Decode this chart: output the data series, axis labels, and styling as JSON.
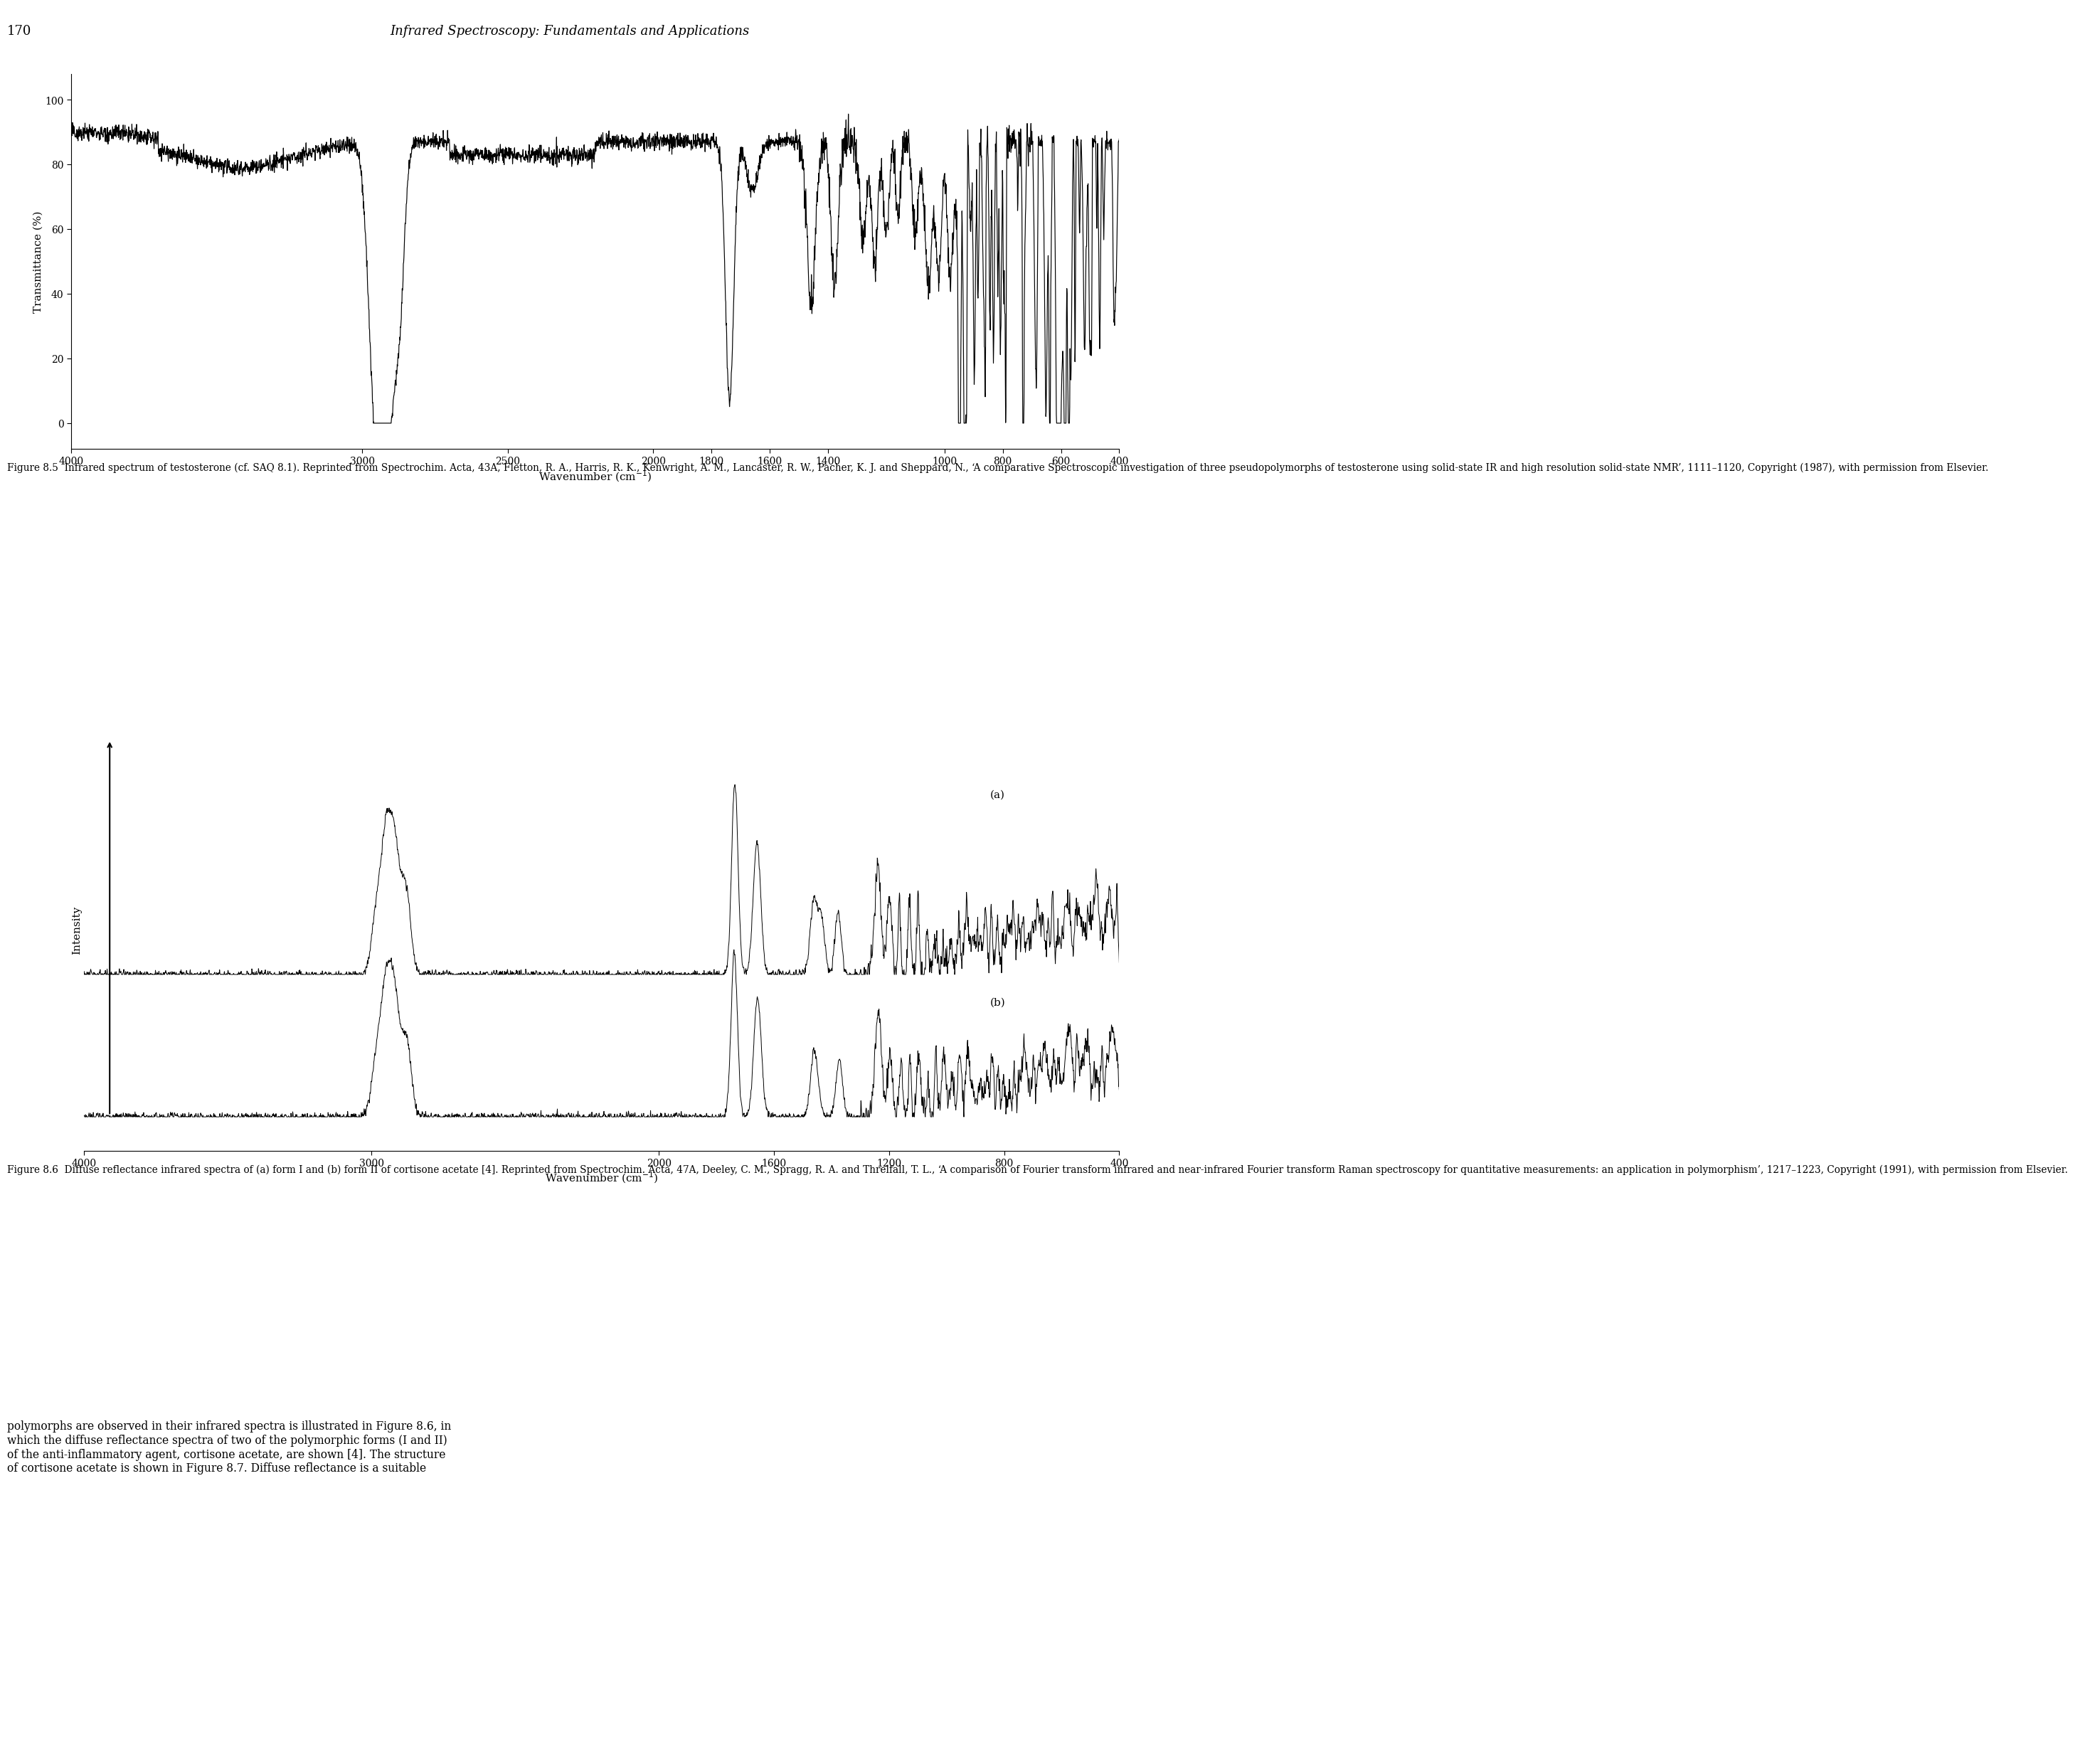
{
  "page_title": "Infrared Spectroscopy: Fundamentals and Applications",
  "page_number": "170",
  "background_color": "#ffffff",
  "fig85_caption": "Figure 8.5  Infrared spectrum of testosterone (cf. SAQ 8.1). Reprinted from Spectrochim. Acta, 43A, Fletton, R. A., Harris, R. K., Kenwright, A. M., Lancaster, R. W., Pacher, K. J. and Sheppard, N., ‘A comparative Spectroscopic investigation of three pseudopolymorphs of testosterone using solid-state IR and high resolution solid-state NMR’, 1111–1120, Copyright (1987), with permission from Elsevier.",
  "fig86_caption": "Figure 8.6  Diffuse reflectance infrared spectra of (a) form I and (b) form II of cortisone acetate [4]. Reprinted from Spectrochim. Acta, 47A, Deeley, C. M., Spragg, R. A. and Threlfall, T. L., ‘A comparison of Fourier transform infrared and near-infrared Fourier transform Raman spectroscopy for quantitative measurements: an application in polymorphism’, 1217–1223, Copyright (1991), with permission from Elsevier.",
  "body_text": "polymorphs are observed in their infrared spectra is illustrated in Figure 8.6, in\nwhich the diffuse reflectance spectra of two of the polymorphic forms (I and II)\nof the anti-inflammatory agent, cortisone acetate, are shown [4]. The structure\nof cortisone acetate is shown in Figure 8.7. Diffuse reflectance is a suitable",
  "fig85_ylabel": "Transmittance (%)",
  "fig85_yticks": [
    0,
    20,
    40,
    60,
    80,
    100
  ],
  "fig85_xticks": [
    4000,
    3000,
    2500,
    2000,
    1800,
    1600,
    1400,
    1000,
    800,
    600,
    400
  ],
  "fig86_ylabel": "Intensity",
  "fig86_xticks": [
    4000,
    3000,
    2000,
    1600,
    1200,
    800,
    400
  ],
  "label_a": "(a)",
  "label_b": "(b)"
}
